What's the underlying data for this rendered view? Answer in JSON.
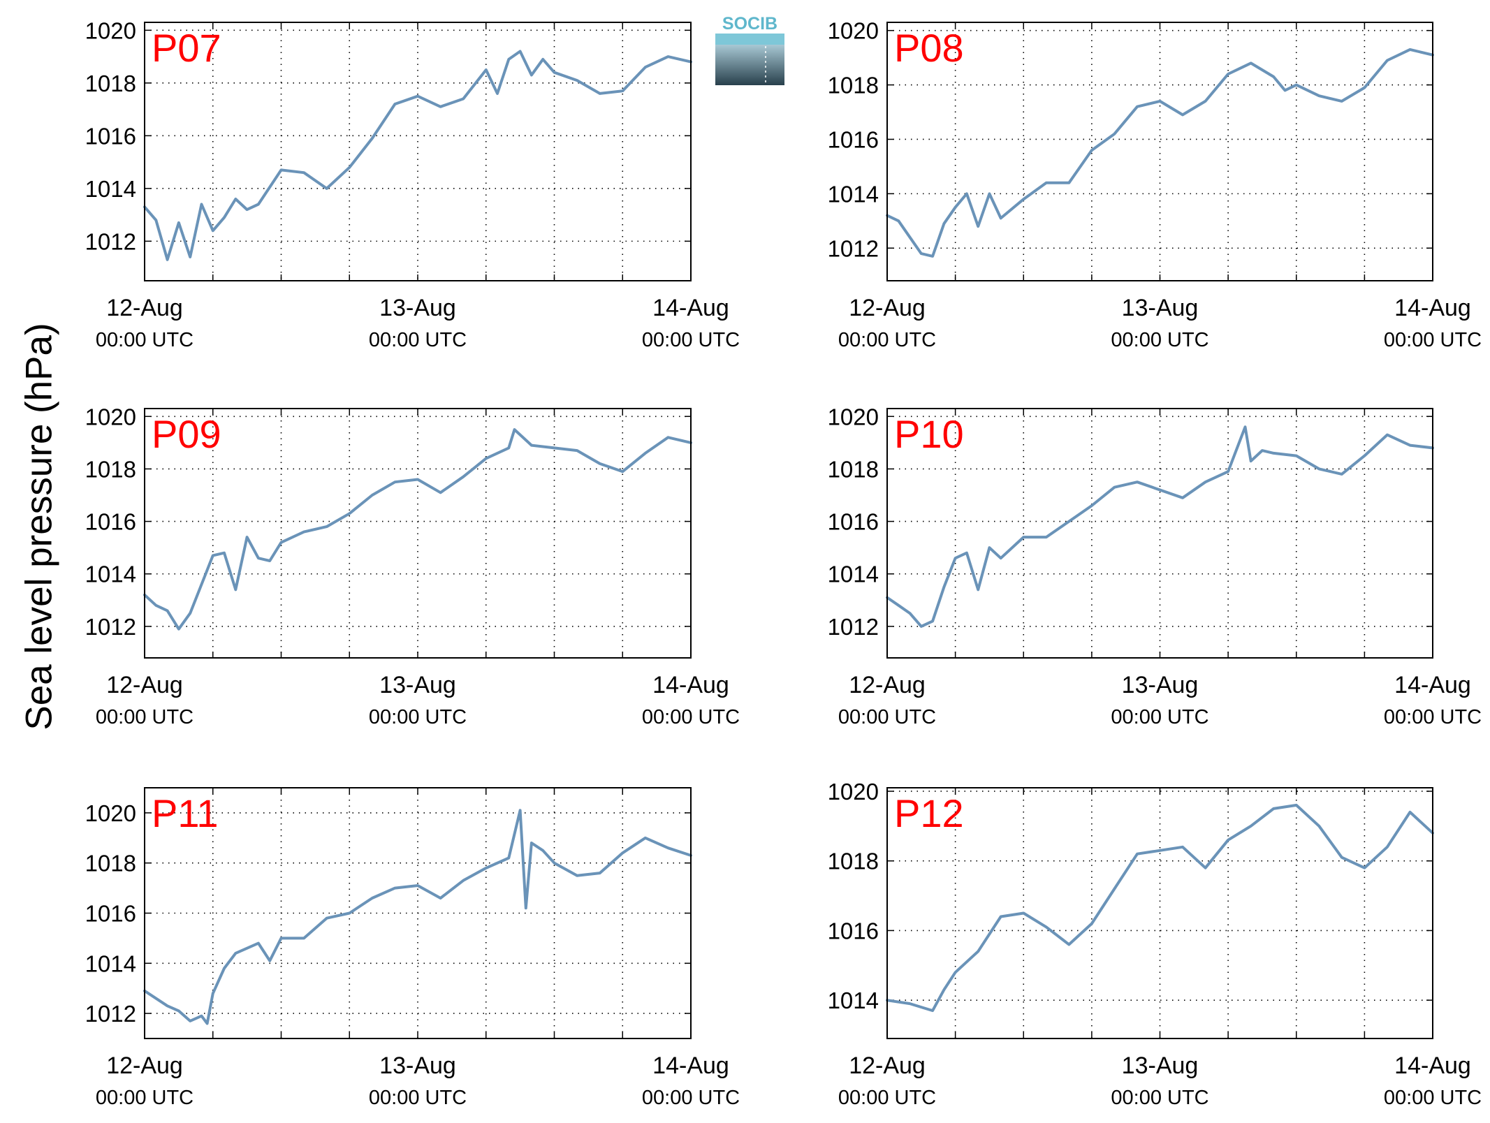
{
  "figure": {
    "ylabel": "Sea level pressure (hPa)",
    "line_color": "#6a93b8",
    "label_color": "#ff0000",
    "logo_text": "SOCIB"
  },
  "chart_data": [
    {
      "type": "line",
      "station": "P07",
      "title": "P07",
      "xlim": [
        "2021-08-12T00:00",
        "2021-08-14T00:00"
      ],
      "xticks": [
        "2021-08-12T00:00",
        "2021-08-12T06:00",
        "2021-08-12T12:00",
        "2021-08-12T18:00",
        "2021-08-13T00:00",
        "2021-08-13T06:00",
        "2021-08-13T12:00",
        "2021-08-13T18:00",
        "2021-08-14T00:00"
      ],
      "xtick_labels": [
        {
          "x": "2021-08-12T00:00",
          "date": "12-Aug",
          "time": "00:00 UTC"
        },
        {
          "x": "2021-08-13T00:00",
          "date": "13-Aug",
          "time": "00:00 UTC"
        },
        {
          "x": "2021-08-14T00:00",
          "date": "14-Aug",
          "time": "00:00 UTC"
        }
      ],
      "ylim": [
        1010.5,
        1020.3
      ],
      "yticks": [
        1012,
        1014,
        1016,
        1018,
        1020
      ],
      "grid": true,
      "x": [
        "2021-08-12T00:00",
        "2021-08-12T01:00",
        "2021-08-12T02:00",
        "2021-08-12T03:00",
        "2021-08-12T04:00",
        "2021-08-12T05:00",
        "2021-08-12T06:00",
        "2021-08-12T07:00",
        "2021-08-12T08:00",
        "2021-08-12T09:00",
        "2021-08-12T10:00",
        "2021-08-12T12:00",
        "2021-08-12T14:00",
        "2021-08-12T16:00",
        "2021-08-12T18:00",
        "2021-08-12T20:00",
        "2021-08-12T22:00",
        "2021-08-13T00:00",
        "2021-08-13T02:00",
        "2021-08-13T04:00",
        "2021-08-13T06:00",
        "2021-08-13T07:00",
        "2021-08-13T08:00",
        "2021-08-13T09:00",
        "2021-08-13T10:00",
        "2021-08-13T11:00",
        "2021-08-13T12:00",
        "2021-08-13T14:00",
        "2021-08-13T16:00",
        "2021-08-13T18:00",
        "2021-08-13T20:00",
        "2021-08-13T22:00",
        "2021-08-14T00:00"
      ],
      "y": [
        1013.3,
        1012.8,
        1011.3,
        1012.7,
        1011.4,
        1013.4,
        1012.4,
        1012.9,
        1013.6,
        1013.2,
        1013.4,
        1014.7,
        1014.6,
        1014.0,
        1014.8,
        1015.9,
        1017.2,
        1017.5,
        1017.1,
        1017.4,
        1018.5,
        1017.6,
        1018.9,
        1019.2,
        1018.3,
        1018.9,
        1018.4,
        1018.1,
        1017.6,
        1017.7,
        1018.6,
        1019.0,
        1018.8
      ]
    },
    {
      "type": "line",
      "station": "P08",
      "title": "P08",
      "xlim": [
        "2021-08-12T00:00",
        "2021-08-14T00:00"
      ],
      "xticks": [
        "2021-08-12T00:00",
        "2021-08-12T06:00",
        "2021-08-12T12:00",
        "2021-08-12T18:00",
        "2021-08-13T00:00",
        "2021-08-13T06:00",
        "2021-08-13T12:00",
        "2021-08-13T18:00",
        "2021-08-14T00:00"
      ],
      "xtick_labels": [
        {
          "x": "2021-08-12T00:00",
          "date": "12-Aug",
          "time": "00:00 UTC"
        },
        {
          "x": "2021-08-13T00:00",
          "date": "13-Aug",
          "time": "00:00 UTC"
        },
        {
          "x": "2021-08-14T00:00",
          "date": "14-Aug",
          "time": "00:00 UTC"
        }
      ],
      "ylim": [
        1010.8,
        1020.3
      ],
      "yticks": [
        1012,
        1014,
        1016,
        1018,
        1020
      ],
      "grid": true,
      "x": [
        "2021-08-12T00:00",
        "2021-08-12T01:00",
        "2021-08-12T02:00",
        "2021-08-12T03:00",
        "2021-08-12T04:00",
        "2021-08-12T05:00",
        "2021-08-12T06:00",
        "2021-08-12T07:00",
        "2021-08-12T08:00",
        "2021-08-12T09:00",
        "2021-08-12T10:00",
        "2021-08-12T12:00",
        "2021-08-12T14:00",
        "2021-08-12T16:00",
        "2021-08-12T18:00",
        "2021-08-12T20:00",
        "2021-08-12T22:00",
        "2021-08-13T00:00",
        "2021-08-13T02:00",
        "2021-08-13T04:00",
        "2021-08-13T06:00",
        "2021-08-13T08:00",
        "2021-08-13T10:00",
        "2021-08-13T11:00",
        "2021-08-13T12:00",
        "2021-08-13T14:00",
        "2021-08-13T16:00",
        "2021-08-13T18:00",
        "2021-08-13T20:00",
        "2021-08-13T22:00",
        "2021-08-14T00:00"
      ],
      "y": [
        1013.2,
        1013.0,
        1012.4,
        1011.8,
        1011.7,
        1012.9,
        1013.5,
        1014.0,
        1012.8,
        1014.0,
        1013.1,
        1013.8,
        1014.4,
        1014.4,
        1015.6,
        1016.2,
        1017.2,
        1017.4,
        1016.9,
        1017.4,
        1018.4,
        1018.8,
        1018.3,
        1017.8,
        1018.0,
        1017.6,
        1017.4,
        1017.9,
        1018.9,
        1019.3,
        1019.1
      ]
    },
    {
      "type": "line",
      "station": "P09",
      "title": "P09",
      "xlim": [
        "2021-08-12T00:00",
        "2021-08-14T00:00"
      ],
      "xticks": [
        "2021-08-12T00:00",
        "2021-08-12T06:00",
        "2021-08-12T12:00",
        "2021-08-12T18:00",
        "2021-08-13T00:00",
        "2021-08-13T06:00",
        "2021-08-13T12:00",
        "2021-08-13T18:00",
        "2021-08-14T00:00"
      ],
      "xtick_labels": [
        {
          "x": "2021-08-12T00:00",
          "date": "12-Aug",
          "time": "00:00 UTC"
        },
        {
          "x": "2021-08-13T00:00",
          "date": "13-Aug",
          "time": "00:00 UTC"
        },
        {
          "x": "2021-08-14T00:00",
          "date": "14-Aug",
          "time": "00:00 UTC"
        }
      ],
      "ylim": [
        1010.8,
        1020.3
      ],
      "yticks": [
        1012,
        1014,
        1016,
        1018,
        1020
      ],
      "grid": true,
      "x": [
        "2021-08-12T00:00",
        "2021-08-12T01:00",
        "2021-08-12T02:00",
        "2021-08-12T03:00",
        "2021-08-12T04:00",
        "2021-08-12T05:00",
        "2021-08-12T06:00",
        "2021-08-12T07:00",
        "2021-08-12T08:00",
        "2021-08-12T09:00",
        "2021-08-12T10:00",
        "2021-08-12T11:00",
        "2021-08-12T12:00",
        "2021-08-12T14:00",
        "2021-08-12T16:00",
        "2021-08-12T18:00",
        "2021-08-12T20:00",
        "2021-08-12T22:00",
        "2021-08-13T00:00",
        "2021-08-13T02:00",
        "2021-08-13T04:00",
        "2021-08-13T06:00",
        "2021-08-13T08:00",
        "2021-08-13T08:30",
        "2021-08-13T10:00",
        "2021-08-13T12:00",
        "2021-08-13T14:00",
        "2021-08-13T16:00",
        "2021-08-13T18:00",
        "2021-08-13T20:00",
        "2021-08-13T22:00",
        "2021-08-14T00:00"
      ],
      "y": [
        1013.2,
        1012.8,
        1012.6,
        1011.9,
        1012.5,
        1013.6,
        1014.7,
        1014.8,
        1013.4,
        1015.4,
        1014.6,
        1014.5,
        1015.2,
        1015.6,
        1015.8,
        1016.3,
        1017.0,
        1017.5,
        1017.6,
        1017.1,
        1017.7,
        1018.4,
        1018.8,
        1019.5,
        1018.9,
        1018.8,
        1018.7,
        1018.2,
        1017.9,
        1018.6,
        1019.2,
        1019.0
      ]
    },
    {
      "type": "line",
      "station": "P10",
      "title": "P10",
      "xlim": [
        "2021-08-12T00:00",
        "2021-08-14T00:00"
      ],
      "xticks": [
        "2021-08-12T00:00",
        "2021-08-12T06:00",
        "2021-08-12T12:00",
        "2021-08-12T18:00",
        "2021-08-13T00:00",
        "2021-08-13T06:00",
        "2021-08-13T12:00",
        "2021-08-13T18:00",
        "2021-08-14T00:00"
      ],
      "xtick_labels": [
        {
          "x": "2021-08-12T00:00",
          "date": "12-Aug",
          "time": "00:00 UTC"
        },
        {
          "x": "2021-08-13T00:00",
          "date": "13-Aug",
          "time": "00:00 UTC"
        },
        {
          "x": "2021-08-14T00:00",
          "date": "14-Aug",
          "time": "00:00 UTC"
        }
      ],
      "ylim": [
        1010.8,
        1020.3
      ],
      "yticks": [
        1012,
        1014,
        1016,
        1018,
        1020
      ],
      "grid": true,
      "x": [
        "2021-08-12T00:00",
        "2021-08-12T01:00",
        "2021-08-12T02:00",
        "2021-08-12T03:00",
        "2021-08-12T04:00",
        "2021-08-12T05:00",
        "2021-08-12T06:00",
        "2021-08-12T07:00",
        "2021-08-12T08:00",
        "2021-08-12T09:00",
        "2021-08-12T10:00",
        "2021-08-12T12:00",
        "2021-08-12T14:00",
        "2021-08-12T16:00",
        "2021-08-12T18:00",
        "2021-08-12T20:00",
        "2021-08-12T22:00",
        "2021-08-13T00:00",
        "2021-08-13T02:00",
        "2021-08-13T04:00",
        "2021-08-13T06:00",
        "2021-08-13T07:30",
        "2021-08-13T08:00",
        "2021-08-13T09:00",
        "2021-08-13T10:00",
        "2021-08-13T12:00",
        "2021-08-13T14:00",
        "2021-08-13T16:00",
        "2021-08-13T18:00",
        "2021-08-13T20:00",
        "2021-08-13T22:00",
        "2021-08-14T00:00"
      ],
      "y": [
        1013.1,
        1012.8,
        1012.5,
        1012.0,
        1012.2,
        1013.5,
        1014.6,
        1014.8,
        1013.4,
        1015.0,
        1014.6,
        1015.4,
        1015.4,
        1016.0,
        1016.6,
        1017.3,
        1017.5,
        1017.2,
        1016.9,
        1017.5,
        1017.9,
        1019.6,
        1018.3,
        1018.7,
        1018.6,
        1018.5,
        1018.0,
        1017.8,
        1018.5,
        1019.3,
        1018.9,
        1018.8
      ]
    },
    {
      "type": "line",
      "station": "P11",
      "title": "P11",
      "xlim": [
        "2021-08-12T00:00",
        "2021-08-14T00:00"
      ],
      "xticks": [
        "2021-08-12T00:00",
        "2021-08-12T06:00",
        "2021-08-12T12:00",
        "2021-08-12T18:00",
        "2021-08-13T00:00",
        "2021-08-13T06:00",
        "2021-08-13T12:00",
        "2021-08-13T18:00",
        "2021-08-14T00:00"
      ],
      "xtick_labels": [
        {
          "x": "2021-08-12T00:00",
          "date": "12-Aug",
          "time": "00:00 UTC"
        },
        {
          "x": "2021-08-13T00:00",
          "date": "13-Aug",
          "time": "00:00 UTC"
        },
        {
          "x": "2021-08-14T00:00",
          "date": "14-Aug",
          "time": "00:00 UTC"
        }
      ],
      "ylim": [
        1011.0,
        1021.0
      ],
      "yticks": [
        1012,
        1014,
        1016,
        1018,
        1020
      ],
      "grid": true,
      "x": [
        "2021-08-12T00:00",
        "2021-08-12T01:00",
        "2021-08-12T02:00",
        "2021-08-12T03:00",
        "2021-08-12T04:00",
        "2021-08-12T05:00",
        "2021-08-12T05:30",
        "2021-08-12T06:00",
        "2021-08-12T07:00",
        "2021-08-12T08:00",
        "2021-08-12T10:00",
        "2021-08-12T11:00",
        "2021-08-12T12:00",
        "2021-08-12T14:00",
        "2021-08-12T16:00",
        "2021-08-12T18:00",
        "2021-08-12T20:00",
        "2021-08-12T22:00",
        "2021-08-13T00:00",
        "2021-08-13T02:00",
        "2021-08-13T04:00",
        "2021-08-13T06:00",
        "2021-08-13T08:00",
        "2021-08-13T09:00",
        "2021-08-13T09:30",
        "2021-08-13T10:00",
        "2021-08-13T11:00",
        "2021-08-13T12:00",
        "2021-08-13T14:00",
        "2021-08-13T16:00",
        "2021-08-13T18:00",
        "2021-08-13T20:00",
        "2021-08-13T22:00",
        "2021-08-14T00:00"
      ],
      "y": [
        1012.9,
        1012.6,
        1012.3,
        1012.1,
        1011.7,
        1011.9,
        1011.6,
        1012.8,
        1013.8,
        1014.4,
        1014.8,
        1014.1,
        1015.0,
        1015.0,
        1015.8,
        1016.0,
        1016.6,
        1017.0,
        1017.1,
        1016.6,
        1017.3,
        1017.8,
        1018.2,
        1020.1,
        1016.2,
        1018.8,
        1018.5,
        1018.0,
        1017.5,
        1017.6,
        1018.4,
        1019.0,
        1018.6,
        1018.3
      ]
    },
    {
      "type": "line",
      "station": "P12",
      "title": "P12",
      "xlim": [
        "2021-08-12T00:00",
        "2021-08-14T00:00"
      ],
      "xticks": [
        "2021-08-12T00:00",
        "2021-08-12T06:00",
        "2021-08-12T12:00",
        "2021-08-12T18:00",
        "2021-08-13T00:00",
        "2021-08-13T06:00",
        "2021-08-13T12:00",
        "2021-08-13T18:00",
        "2021-08-14T00:00"
      ],
      "xtick_labels": [
        {
          "x": "2021-08-12T00:00",
          "date": "12-Aug",
          "time": "00:00 UTC"
        },
        {
          "x": "2021-08-13T00:00",
          "date": "13-Aug",
          "time": "00:00 UTC"
        },
        {
          "x": "2021-08-14T00:00",
          "date": "14-Aug",
          "time": "00:00 UTC"
        }
      ],
      "ylim": [
        1012.9,
        1020.1
      ],
      "yticks": [
        1014,
        1016,
        1018,
        1020
      ],
      "grid": true,
      "x": [
        "2021-08-12T00:00",
        "2021-08-12T02:00",
        "2021-08-12T04:00",
        "2021-08-12T05:00",
        "2021-08-12T06:00",
        "2021-08-12T08:00",
        "2021-08-12T10:00",
        "2021-08-12T12:00",
        "2021-08-12T14:00",
        "2021-08-12T16:00",
        "2021-08-12T18:00",
        "2021-08-12T20:00",
        "2021-08-12T22:00",
        "2021-08-13T00:00",
        "2021-08-13T02:00",
        "2021-08-13T04:00",
        "2021-08-13T06:00",
        "2021-08-13T08:00",
        "2021-08-13T10:00",
        "2021-08-13T12:00",
        "2021-08-13T14:00",
        "2021-08-13T16:00",
        "2021-08-13T18:00",
        "2021-08-13T20:00",
        "2021-08-13T22:00",
        "2021-08-14T00:00"
      ],
      "y": [
        1014.0,
        1013.9,
        1013.7,
        1014.3,
        1014.8,
        1015.4,
        1016.4,
        1016.5,
        1016.1,
        1015.6,
        1016.2,
        1017.2,
        1018.2,
        1018.3,
        1018.4,
        1017.8,
        1018.6,
        1019.0,
        1019.5,
        1019.6,
        1019.0,
        1018.1,
        1017.8,
        1018.4,
        1019.4,
        1018.8
      ]
    }
  ]
}
